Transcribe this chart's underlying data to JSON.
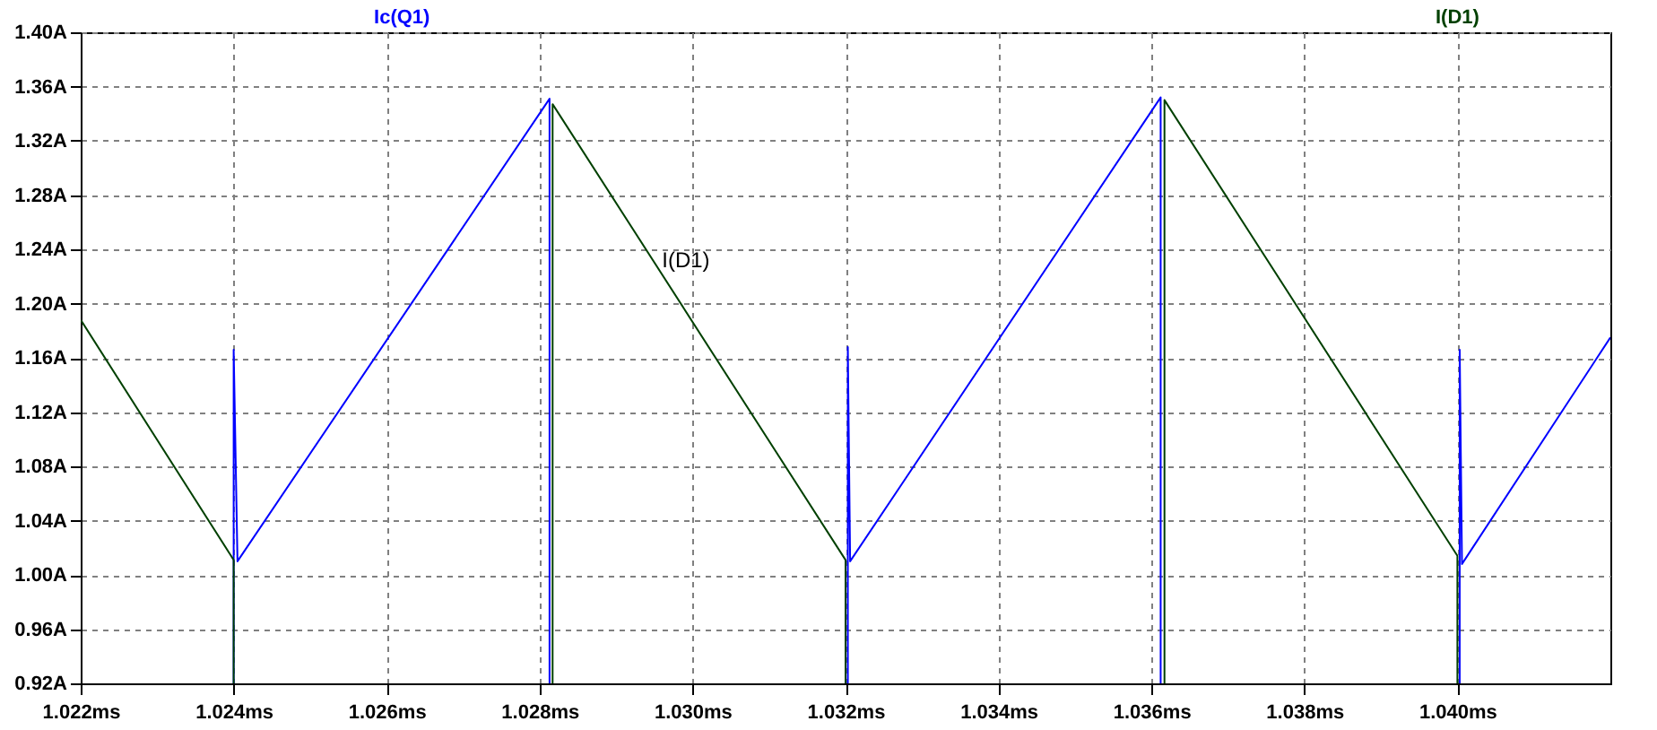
{
  "chart_data": {
    "type": "line",
    "xlim": [
      1.022,
      1.042
    ],
    "xticks": [
      {
        "value": 1.022,
        "label": "1.022ms"
      },
      {
        "value": 1.024,
        "label": "1.024ms"
      },
      {
        "value": 1.026,
        "label": "1.026ms"
      },
      {
        "value": 1.028,
        "label": "1.028ms"
      },
      {
        "value": 1.03,
        "label": "1.030ms"
      },
      {
        "value": 1.032,
        "label": "1.032ms"
      },
      {
        "value": 1.034,
        "label": "1.034ms"
      },
      {
        "value": 1.036,
        "label": "1.036ms"
      },
      {
        "value": 1.038,
        "label": "1.038ms"
      },
      {
        "value": 1.04,
        "label": "1.040ms"
      }
    ],
    "ylim": [
      0.92,
      1.4
    ],
    "yticks": [
      {
        "value": 0.92,
        "label": "0.92A"
      },
      {
        "value": 0.96,
        "label": "0.96A"
      },
      {
        "value": 1.0,
        "label": "1.00A"
      },
      {
        "value": 1.04,
        "label": "1.04A"
      },
      {
        "value": 1.08,
        "label": "1.08A"
      },
      {
        "value": 1.12,
        "label": "1.12A"
      },
      {
        "value": 1.16,
        "label": "1.16A"
      },
      {
        "value": 1.2,
        "label": "1.20A"
      },
      {
        "value": 1.24,
        "label": "1.24A"
      },
      {
        "value": 1.28,
        "label": "1.28A"
      },
      {
        "value": 1.32,
        "label": "1.32A"
      },
      {
        "value": 1.36,
        "label": "1.36A"
      },
      {
        "value": 1.4,
        "label": "1.40A"
      }
    ],
    "grid": true,
    "legend": "top",
    "line_style": "solid",
    "marker": "none",
    "annotations": [
      {
        "text": "I(D1)",
        "x": 1.0296,
        "y": 1.232
      }
    ],
    "series": [
      {
        "name": "Ic(Q1)",
        "color": "#0000ff",
        "x": [
          1.024,
          1.024,
          1.02405,
          1.02813,
          1.02813,
          1.03,
          1.03203,
          1.03203,
          1.03206,
          1.03612,
          1.03612,
          1.038,
          1.04003,
          1.04003,
          1.04006,
          1.042
        ],
        "values": [
          0.92,
          1.166,
          1.01,
          1.351,
          0.92,
          null,
          0.92,
          1.168,
          1.01,
          1.352,
          0.92,
          null,
          0.92,
          1.166,
          1.008,
          1.175
        ]
      },
      {
        "name": "I(D1)",
        "color": "#004000",
        "x": [
          1.022,
          1.024,
          1.024,
          1.026,
          1.02817,
          1.02817,
          1.032,
          1.032,
          1.034,
          1.03617,
          1.03617,
          1.04,
          1.04
        ],
        "values": [
          1.188,
          1.011,
          0.92,
          null,
          0.92,
          1.347,
          1.011,
          0.92,
          null,
          0.92,
          1.35,
          1.014,
          0.92
        ]
      }
    ]
  }
}
